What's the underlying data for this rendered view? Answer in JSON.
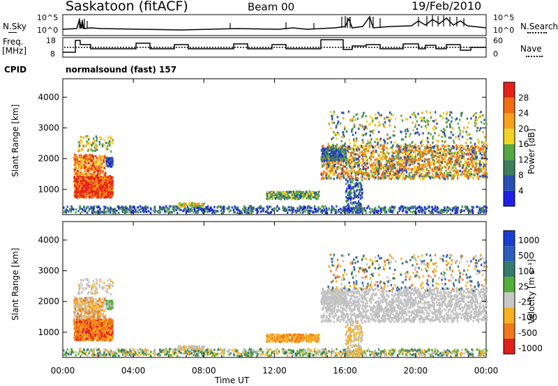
{
  "header": {
    "radar": "Saskatoon",
    "mode": "(fitACF)",
    "beam": "Beam 00",
    "date": "19/Feb/2010"
  },
  "aux_panels": {
    "nsky_label": "N.Sky",
    "nsky_ticks": [
      "10^5",
      "10^0"
    ],
    "nsearch_label": "N.Search",
    "nsearch_ticks": [
      "10^5",
      "10^0"
    ],
    "freq_label_1": "Freq.",
    "freq_label_2": "[MHz]",
    "freq_ticks": [
      "18",
      "8"
    ],
    "nave_label": "Nave",
    "nave_ticks": [
      "60",
      "0"
    ],
    "cpid_label": "CPID",
    "cpid_value": "normalsound (fast) 157"
  },
  "colors": {
    "power_scale": [
      "#1f1fe8",
      "#2a4fb5",
      "#3e7f5c",
      "#55a845",
      "#f2d422",
      "#f7a21a",
      "#f26c12",
      "#e8201a"
    ],
    "velocity_scale": [
      "#1a3fd0",
      "#2a5fc0",
      "#357a6a",
      "#52b03a",
      "#c8c8c8",
      "#f7b020",
      "#f2781a",
      "#e0201a"
    ],
    "ground_scatter": "#c0c0c0"
  },
  "chart_data": [
    {
      "type": "heatmap",
      "panel": "power",
      "xlabel": "Time UT",
      "ylabel": "Slant Range [km]",
      "x_ticks": [
        "00:00",
        "04:00",
        "08:00",
        "12:00",
        "16:00",
        "20:00",
        "00:00"
      ],
      "xlim_hours": [
        0,
        24
      ],
      "y_ticks": [
        1000,
        2000,
        3000,
        4000
      ],
      "ylim": [
        180,
        4600
      ],
      "colorbar_label": "Power [dB]",
      "colorbar_ticks": [
        4,
        8,
        12,
        16,
        20,
        24,
        28
      ]
    },
    {
      "type": "heatmap",
      "panel": "velocity",
      "xlabel": "Time UT",
      "ylabel": "Slant Range [km]",
      "x_ticks": [
        "00:00",
        "04:00",
        "08:00",
        "12:00",
        "16:00",
        "20:00",
        "00:00"
      ],
      "xlim_hours": [
        0,
        24
      ],
      "y_ticks": [
        1000,
        2000,
        3000,
        4000
      ],
      "ylim": [
        180,
        4600
      ],
      "colorbar_label": "Velocity [m s⁻¹]",
      "colorbar_ticks": [
        1000,
        500,
        100,
        25,
        -25,
        -100,
        -500,
        -1000
      ]
    }
  ],
  "x_axis_title": "Time UT"
}
